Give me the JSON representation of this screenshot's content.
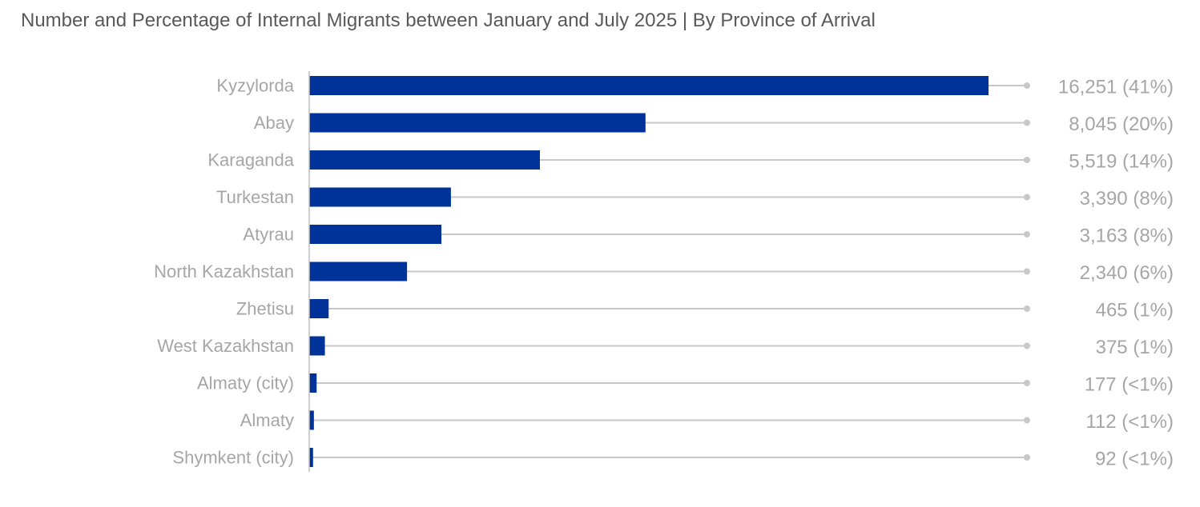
{
  "title": "Number and Percentage of Internal Migrants between January and July 2025 | By Province of Arrival",
  "colors": {
    "bar": "#003399",
    "leader": "#c8c8c8",
    "axis": "#bfbfbf",
    "label": "#a6a6a6",
    "title": "#595959"
  },
  "chart_data": {
    "type": "bar",
    "orientation": "horizontal",
    "title": "Number and Percentage of Internal Migrants between January and July 2025 | By Province of Arrival",
    "xlabel": "",
    "ylabel": "",
    "xlim": [
      0,
      16251
    ],
    "grid": false,
    "legend": "none",
    "categories": [
      "Kyzylorda",
      "Abay",
      "Karaganda",
      "Turkestan",
      "Atyrau",
      "North Kazakhstan",
      "Zhetisu",
      "West Kazakhstan",
      "Almaty (city)",
      "Almaty",
      "Shymkent (city)"
    ],
    "values": [
      16251,
      8045,
      5519,
      3390,
      3163,
      2340,
      465,
      375,
      177,
      112,
      92
    ],
    "data_labels": [
      "16,251 (41%)",
      "8,045 (20%)",
      "5,519 (14%)",
      "3,390 (8%)",
      "3,163 (8%)",
      "2,340 (6%)",
      "465 (1%)",
      "375 (1%)",
      "177 (<1%)",
      "112 (<1%)",
      "92 (<1%)"
    ]
  }
}
